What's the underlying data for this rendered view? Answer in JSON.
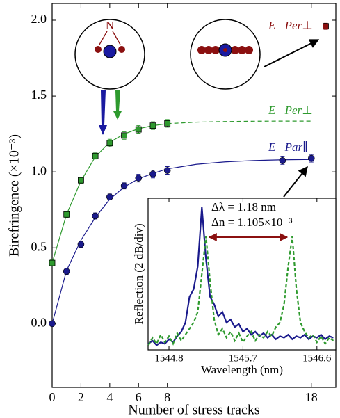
{
  "chart_data": [
    {
      "type": "scatter",
      "xlabel": "Number of stress tracks",
      "ylabel": "Birefringence (×10⁻³)",
      "xlim": [
        0,
        19.7
      ],
      "ylim": [
        -0.42,
        2.11
      ],
      "xticks": [
        0,
        2,
        4,
        6,
        8,
        18
      ],
      "yticks": [
        {
          "value": 0,
          "label": "0.0"
        },
        {
          "value": 0.5,
          "label": "0.5"
        },
        {
          "value": 1,
          "label": "1.0"
        },
        {
          "value": 1.5,
          "label": "1.5"
        },
        {
          "value": 2,
          "label": "2.0"
        }
      ],
      "series": [
        {
          "name": "E⃗Per⊥",
          "color": "#2e9a2e",
          "marker": "square",
          "x": [
            0,
            1,
            2,
            3,
            4,
            5,
            6,
            7,
            8
          ],
          "values": [
            0.4,
            0.72,
            0.945,
            1.105,
            1.19,
            1.24,
            1.28,
            1.305,
            1.32
          ],
          "errors": [
            0.02,
            0.02,
            0.02,
            0.02,
            0.025,
            0.025,
            0.025,
            0.025,
            0.025
          ]
        },
        {
          "name": "E⃗Par∥",
          "color": "#1a1a8c",
          "marker": "circle",
          "x": [
            0,
            1,
            2,
            3,
            4,
            5,
            6,
            7,
            8,
            16,
            18
          ],
          "values": [
            0,
            0.345,
            0.523,
            0.71,
            0.835,
            0.908,
            0.959,
            0.986,
            1.01,
            1.075,
            1.09
          ],
          "errors": [
            0.015,
            0.02,
            0.02,
            0.02,
            0.02,
            0.02,
            0.025,
            0.025,
            0.025,
            0.025,
            0.025
          ]
        },
        {
          "name": "E⃗Per⊥",
          "color": "#8b1010",
          "marker": "square",
          "x": [
            19
          ],
          "values": [
            1.96
          ],
          "errors": [
            0.02
          ]
        }
      ],
      "fits": [
        {
          "color": "#2e9a2e",
          "dash": false,
          "x": [
            0,
            1,
            2,
            3,
            4,
            5,
            6,
            7,
            8
          ],
          "values": [
            0.4,
            0.72,
            0.94,
            1.1,
            1.195,
            1.25,
            1.285,
            1.305,
            1.318
          ]
        },
        {
          "color": "#2e9a2e",
          "dash": true,
          "x": [
            8,
            10,
            12,
            14,
            16,
            18
          ],
          "values": [
            1.318,
            1.328,
            1.332,
            1.334,
            1.335,
            1.335
          ]
        },
        {
          "color": "#1a1a8c",
          "dash": false,
          "x": [
            0,
            1,
            2,
            3,
            4,
            5,
            6,
            7,
            8,
            10,
            12,
            14,
            16,
            18
          ],
          "values": [
            0,
            0.35,
            0.55,
            0.7,
            0.82,
            0.9,
            0.955,
            0.99,
            1.02,
            1.05,
            1.066,
            1.075,
            1.08,
            1.082
          ]
        }
      ],
      "annotations": [
        "N"
      ]
    },
    {
      "type": "line",
      "xlabel": "Wavelength (nm)",
      "ylabel": "Reflection (2 dB/div)",
      "xlim": [
        1544.546,
        1546.83
      ],
      "ylim": [
        0,
        100
      ],
      "xticks": [
        1544.8,
        1545.7,
        1546.6
      ],
      "x": [
        1544.55,
        1544.6,
        1544.65,
        1544.7,
        1544.75,
        1544.8,
        1544.85,
        1544.9,
        1544.95,
        1545.0,
        1545.05,
        1545.1,
        1545.15,
        1545.2,
        1545.25,
        1545.3,
        1545.35,
        1545.4,
        1545.45,
        1545.5,
        1545.55,
        1545.6,
        1545.65,
        1545.7,
        1545.75,
        1545.8,
        1545.85,
        1545.9,
        1545.95,
        1546.0,
        1546.05,
        1546.1,
        1546.15,
        1546.2,
        1546.25,
        1546.3,
        1546.35,
        1546.4,
        1546.45,
        1546.5,
        1546.55,
        1546.6,
        1546.65,
        1546.7,
        1546.75,
        1546.8
      ],
      "series": [
        {
          "color": "#1a1a8c",
          "dash": false,
          "values": [
            4,
            6,
            3,
            5,
            4,
            7,
            5,
            9,
            12,
            18,
            35,
            40,
            55,
            94,
            60,
            35,
            30,
            22,
            25,
            18,
            20,
            15,
            17,
            12,
            14,
            10,
            12,
            9,
            11,
            8,
            10,
            7,
            9,
            8,
            10,
            7,
            9,
            8,
            10,
            7,
            9,
            8,
            10,
            7,
            9,
            8
          ]
        },
        {
          "color": "#2e9a2e",
          "dash": true,
          "values": [
            3,
            8,
            4,
            10,
            5,
            9,
            4,
            11,
            6,
            10,
            14,
            18,
            25,
            50,
            75,
            45,
            20,
            10,
            14,
            8,
            12,
            6,
            11,
            5,
            9,
            12,
            6,
            10,
            8,
            12,
            9,
            15,
            18,
            30,
            55,
            75,
            40,
            18,
            12,
            8,
            10,
            5,
            9,
            4,
            8,
            6
          ]
        }
      ],
      "annotations": [
        "Δλ = 1.18 nm",
        "Δn = 1.105×10⁻³"
      ]
    }
  ]
}
